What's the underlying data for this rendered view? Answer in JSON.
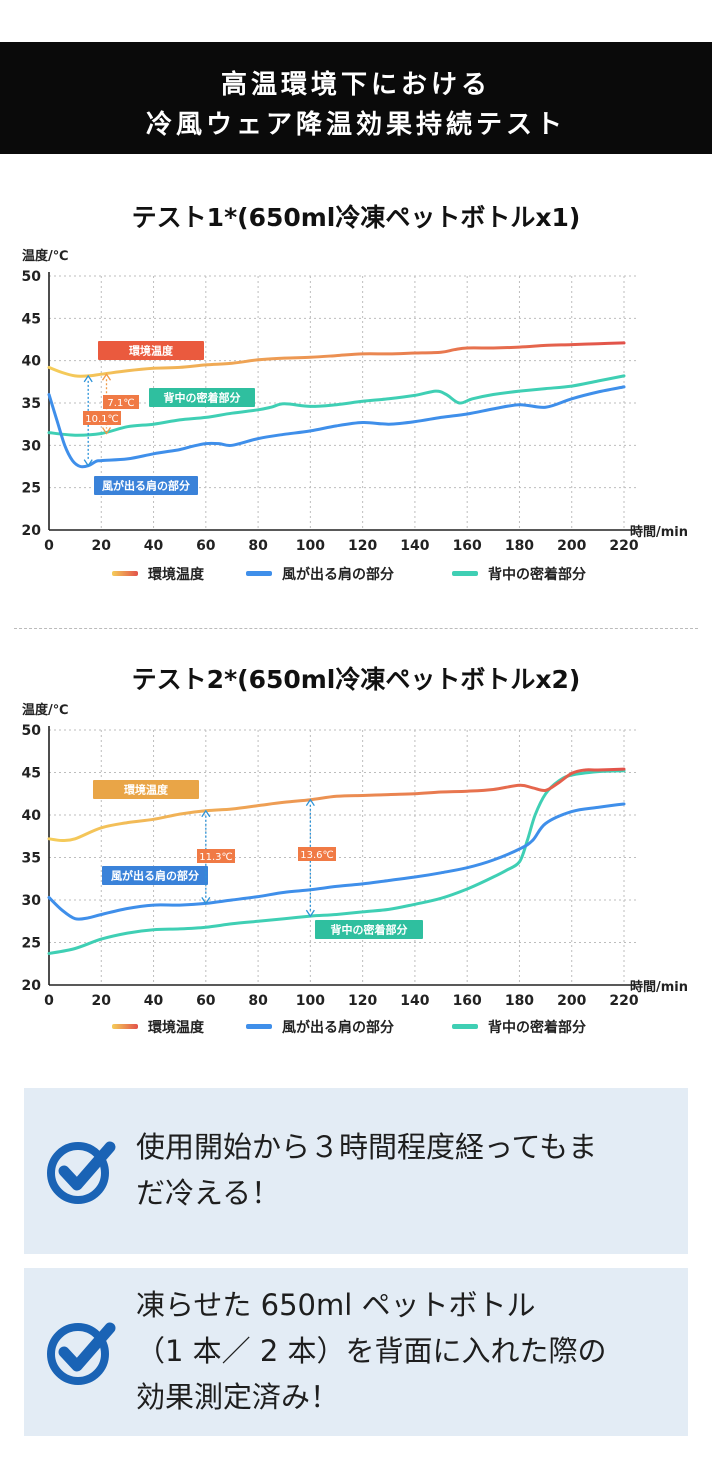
{
  "header": {
    "line1": "高温環境下における",
    "line2": "冷風ウェア降温効果持続テスト"
  },
  "colors": {
    "ambient_start": "#f5cd5a",
    "ambient_end": "#e2524a",
    "airflow": "#3f8fea",
    "back": "#3fcfb4",
    "grid": "#bdbdbd",
    "delta": "#f07a45",
    "box_bg": "#e3ecf5",
    "check": "#1a63b5"
  },
  "legend": [
    "環境温度",
    "風が出る肩の部分",
    "背中の密着部分"
  ],
  "chart_data": [
    {
      "type": "line",
      "title": "テスト1*(650ml冷凍ペットボトルx1)",
      "ylabel": "温度/℃",
      "xlabel": "時間/min",
      "ylim": [
        20,
        50
      ],
      "xlim": [
        0,
        220
      ],
      "x_ticks": [
        0,
        20,
        40,
        60,
        80,
        100,
        120,
        140,
        160,
        180,
        200,
        220
      ],
      "y_ticks": [
        20,
        25,
        30,
        35,
        40,
        45,
        50
      ],
      "grid": true,
      "series": [
        {
          "name": "環境温度",
          "x": [
            0,
            5,
            10,
            15,
            20,
            30,
            40,
            50,
            60,
            70,
            80,
            90,
            100,
            110,
            120,
            130,
            140,
            150,
            155,
            160,
            170,
            180,
            190,
            200,
            210,
            220
          ],
          "y": [
            39.2,
            38.6,
            38.2,
            38.2,
            38.4,
            38.8,
            39.1,
            39.2,
            39.5,
            39.7,
            40.1,
            40.3,
            40.4,
            40.6,
            40.8,
            40.8,
            40.9,
            41.0,
            41.3,
            41.5,
            41.5,
            41.6,
            41.8,
            41.9,
            42.0,
            42.1
          ]
        },
        {
          "name": "風が出る肩の部分",
          "x": [
            0,
            3,
            6,
            9,
            12,
            15,
            18,
            20,
            30,
            40,
            50,
            55,
            60,
            65,
            70,
            80,
            90,
            100,
            110,
            120,
            130,
            140,
            150,
            160,
            170,
            180,
            190,
            200,
            210,
            220
          ],
          "y": [
            36.0,
            33.0,
            30.0,
            28.2,
            27.5,
            27.6,
            28.1,
            28.2,
            28.4,
            29.0,
            29.5,
            29.9,
            30.2,
            30.2,
            30.0,
            30.8,
            31.3,
            31.7,
            32.3,
            32.7,
            32.5,
            32.8,
            33.3,
            33.7,
            34.3,
            34.8,
            34.5,
            35.5,
            36.3,
            36.9
          ]
        },
        {
          "name": "背中の密着部分",
          "x": [
            0,
            10,
            20,
            30,
            40,
            50,
            60,
            70,
            80,
            85,
            90,
            100,
            110,
            120,
            130,
            140,
            148,
            152,
            157,
            162,
            170,
            180,
            190,
            200,
            210,
            220
          ],
          "y": [
            31.5,
            31.2,
            31.4,
            32.2,
            32.5,
            33.0,
            33.3,
            33.8,
            34.2,
            34.5,
            34.9,
            34.6,
            34.8,
            35.2,
            35.5,
            35.9,
            36.4,
            36.0,
            35.0,
            35.5,
            36.0,
            36.4,
            36.7,
            37.0,
            37.6,
            38.2
          ]
        }
      ],
      "annotations": {
        "ambient_tag": "環境温度",
        "back_tag": "背中の密着部分",
        "airflow_tag": "風が出る肩の部分",
        "delta1": "7.1℃",
        "delta2": "10.1℃"
      }
    },
    {
      "type": "line",
      "title": "テスト2*(650ml冷凍ペットボトルx2)",
      "ylabel": "温度/℃",
      "xlabel": "時間/min",
      "ylim": [
        20,
        50
      ],
      "xlim": [
        0,
        220
      ],
      "x_ticks": [
        0,
        20,
        40,
        60,
        80,
        100,
        120,
        140,
        160,
        180,
        200,
        220
      ],
      "y_ticks": [
        20,
        25,
        30,
        35,
        40,
        45,
        50
      ],
      "grid": true,
      "series": [
        {
          "name": "環境温度",
          "x": [
            0,
            5,
            10,
            20,
            30,
            40,
            50,
            60,
            70,
            80,
            90,
            100,
            110,
            120,
            130,
            140,
            150,
            160,
            170,
            180,
            185,
            190,
            195,
            200,
            205,
            210,
            220
          ],
          "y": [
            37.2,
            37.0,
            37.2,
            38.5,
            39.1,
            39.5,
            40.1,
            40.5,
            40.7,
            41.1,
            41.5,
            41.8,
            42.2,
            42.3,
            42.4,
            42.5,
            42.7,
            42.8,
            43.0,
            43.5,
            43.2,
            42.9,
            43.8,
            44.9,
            45.3,
            45.3,
            45.4
          ]
        },
        {
          "name": "風が出る肩の部分",
          "x": [
            0,
            5,
            10,
            15,
            20,
            30,
            40,
            50,
            60,
            70,
            80,
            90,
            100,
            110,
            120,
            130,
            140,
            150,
            160,
            170,
            180,
            185,
            190,
            200,
            210,
            220
          ],
          "y": [
            30.3,
            28.8,
            27.8,
            27.9,
            28.3,
            29.0,
            29.4,
            29.4,
            29.6,
            30.0,
            30.4,
            30.9,
            31.2,
            31.6,
            31.9,
            32.3,
            32.7,
            33.2,
            33.8,
            34.7,
            36.0,
            37.0,
            39.0,
            40.4,
            40.9,
            41.3
          ]
        },
        {
          "name": "背中の密着部分",
          "x": [
            0,
            10,
            20,
            30,
            40,
            50,
            60,
            70,
            80,
            90,
            100,
            110,
            120,
            130,
            140,
            150,
            160,
            170,
            175,
            180,
            183,
            186,
            190,
            195,
            200,
            210,
            220
          ],
          "y": [
            23.7,
            24.3,
            25.4,
            26.1,
            26.5,
            26.6,
            26.8,
            27.2,
            27.5,
            27.8,
            28.1,
            28.3,
            28.6,
            28.9,
            29.5,
            30.2,
            31.3,
            32.7,
            33.5,
            34.5,
            37.0,
            40.0,
            42.5,
            44.0,
            44.7,
            45.1,
            45.2
          ]
        }
      ],
      "annotations": {
        "ambient_tag": "環境温度",
        "airflow_tag": "風が出る肩の部分",
        "back_tag": "背中の密着部分",
        "delta1": "11.3℃",
        "delta2": "13.6℃"
      }
    }
  ],
  "notes": [
    {
      "icon": "check-circle-icon",
      "lines": [
        "使用開始から３時間程度経ってもま",
        "だ冷える！"
      ]
    },
    {
      "icon": "check-circle-icon",
      "lines": [
        "凍らせた 650ml ペットボトル",
        "（1 本／ 2 本）を背面に入れた際の",
        "効果測定済み！"
      ]
    }
  ]
}
